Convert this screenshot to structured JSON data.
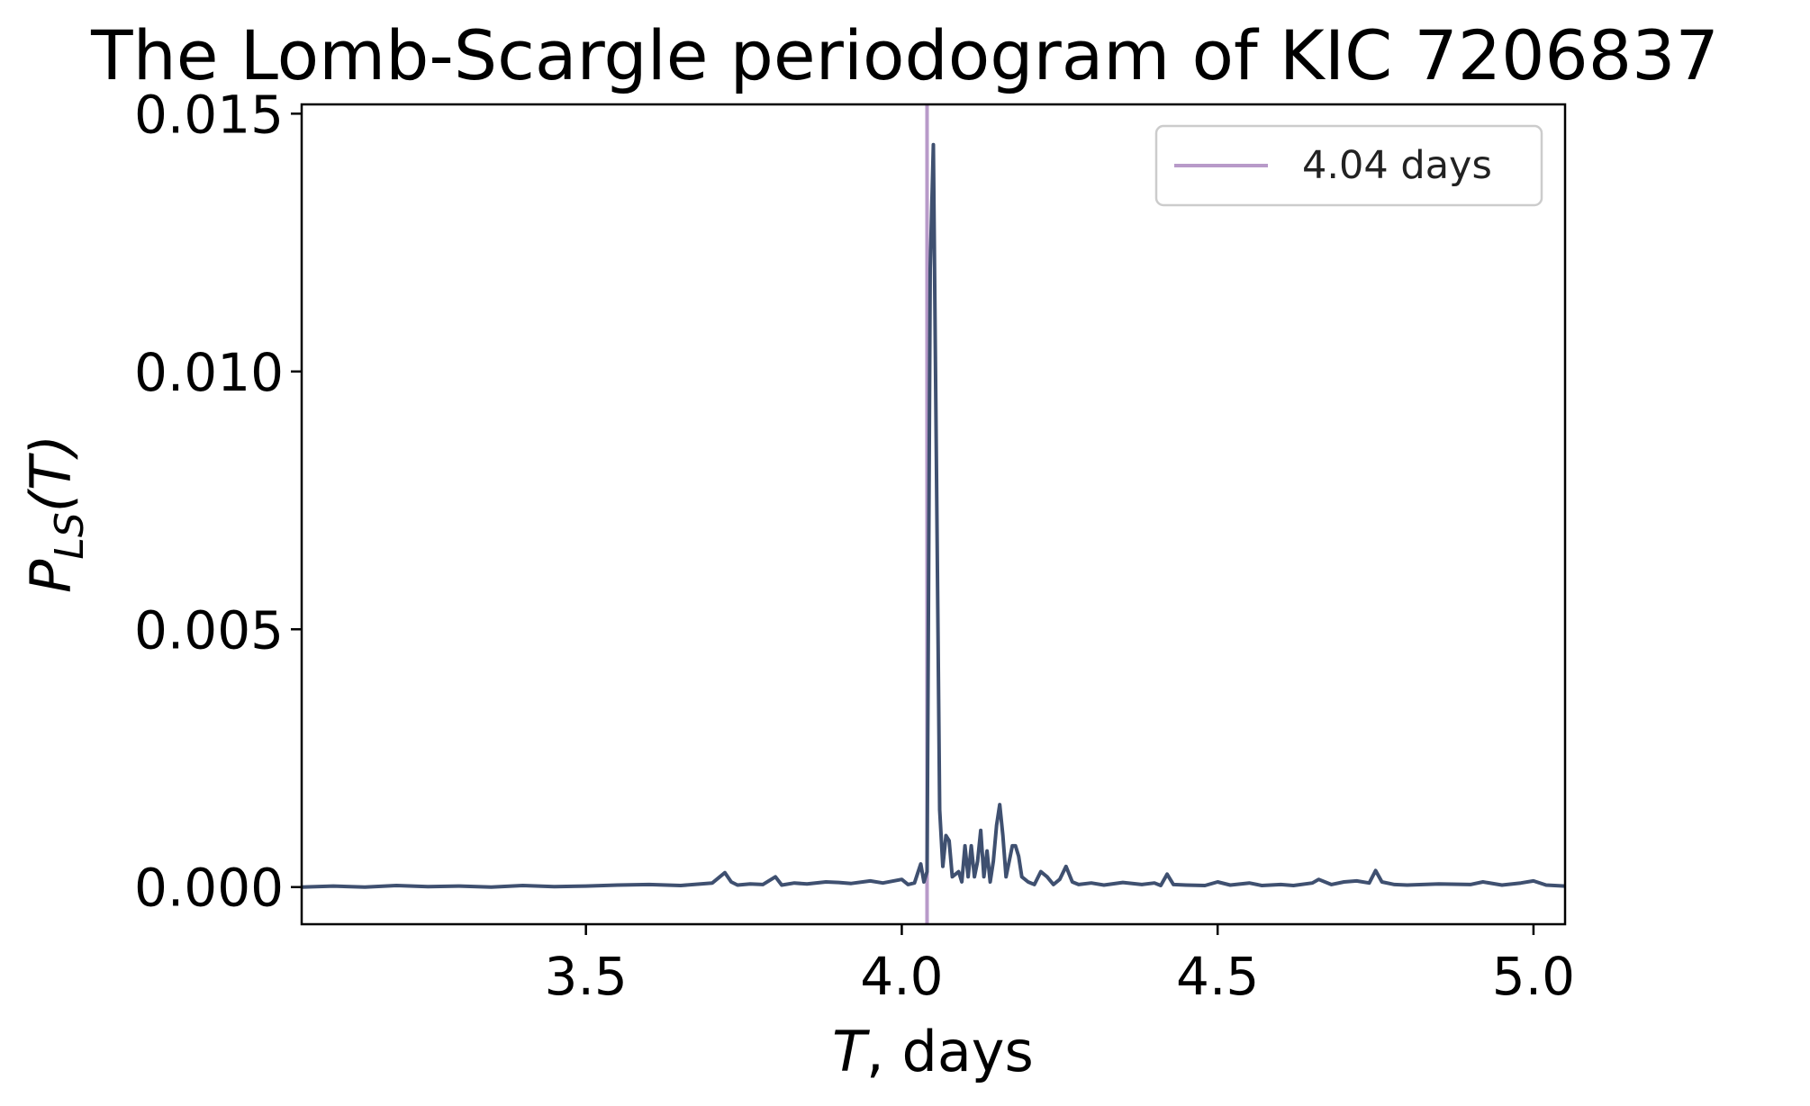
{
  "chart_data": {
    "type": "line",
    "title": "The Lomb-Scargle periodogram of KIC 7206837",
    "xlabel": {
      "italic": "T",
      "rest": ", days"
    },
    "ylabel": {
      "main": "P",
      "sub": "LS",
      "arg": "(T)"
    },
    "xlim": [
      3.05,
      5.05
    ],
    "ylim": [
      -0.00072,
      0.01518
    ],
    "xticks": [
      3.5,
      4.0,
      4.5,
      5.0
    ],
    "xtick_labels": [
      "3.5",
      "4.0",
      "4.5",
      "5.0"
    ],
    "yticks": [
      0.0,
      0.005,
      0.01,
      0.015
    ],
    "ytick_labels": [
      "0.000",
      "0.005",
      "0.010",
      "0.015"
    ],
    "grid": false,
    "legend": {
      "position": "top-right",
      "entries": [
        "4.04 days"
      ]
    },
    "vline": {
      "x": 4.04,
      "label": "4.04 days",
      "color": "#b89ac9"
    },
    "series": [
      {
        "color": "#3f5070",
        "x": [
          3.05,
          3.1,
          3.15,
          3.2,
          3.25,
          3.3,
          3.35,
          3.4,
          3.45,
          3.5,
          3.55,
          3.6,
          3.65,
          3.7,
          3.72,
          3.73,
          3.74,
          3.76,
          3.78,
          3.8,
          3.81,
          3.83,
          3.85,
          3.88,
          3.9,
          3.92,
          3.95,
          3.97,
          4.0,
          4.01,
          4.02,
          4.03,
          4.035,
          4.04,
          4.045,
          4.05,
          4.055,
          4.06,
          4.065,
          4.07,
          4.075,
          4.08,
          4.09,
          4.095,
          4.1,
          4.105,
          4.11,
          4.115,
          4.12,
          4.125,
          4.13,
          4.135,
          4.14,
          4.145,
          4.15,
          4.155,
          4.16,
          4.165,
          4.17,
          4.175,
          4.18,
          4.185,
          4.19,
          4.2,
          4.21,
          4.22,
          4.23,
          4.24,
          4.25,
          4.26,
          4.27,
          4.28,
          4.3,
          4.32,
          4.35,
          4.38,
          4.4,
          4.41,
          4.42,
          4.43,
          4.45,
          4.48,
          4.5,
          4.52,
          4.55,
          4.57,
          4.6,
          4.62,
          4.65,
          4.66,
          4.68,
          4.7,
          4.72,
          4.74,
          4.75,
          4.76,
          4.78,
          4.8,
          4.85,
          4.9,
          4.92,
          4.95,
          4.98,
          5.0,
          5.02,
          5.05
        ],
        "y": [
          0.0,
          2e-05,
          0.0,
          3e-05,
          1e-05,
          2e-05,
          0.0,
          3e-05,
          1e-05,
          2e-05,
          4e-05,
          5e-05,
          3e-05,
          8e-05,
          0.00028,
          0.0001,
          4e-05,
          6e-05,
          5e-05,
          0.0002,
          4e-05,
          8e-05,
          6e-05,
          0.0001,
          9e-05,
          7e-05,
          0.00012,
          8e-05,
          0.00015,
          5e-05,
          8e-05,
          0.00045,
          0.0001,
          0.0003,
          0.012,
          0.0144,
          0.008,
          0.0015,
          0.0004,
          0.001,
          0.0009,
          0.0002,
          0.0003,
          0.0001,
          0.0008,
          0.0002,
          0.0008,
          0.0002,
          0.0005,
          0.0011,
          0.0002,
          0.0007,
          0.0001,
          0.0005,
          0.0012,
          0.0016,
          0.001,
          0.0002,
          0.0005,
          0.0008,
          0.0008,
          0.0006,
          0.0002,
          0.0001,
          5e-05,
          0.0003,
          0.0002,
          5e-05,
          0.00015,
          0.0004,
          0.0001,
          5e-05,
          8e-05,
          4e-05,
          9e-05,
          5e-05,
          8e-05,
          3e-05,
          0.00025,
          5e-05,
          4e-05,
          3e-05,
          0.0001,
          4e-05,
          8e-05,
          3e-05,
          5e-05,
          3e-05,
          8e-05,
          0.00015,
          5e-05,
          0.0001,
          0.00012,
          8e-05,
          0.00032,
          0.0001,
          5e-05,
          4e-05,
          6e-05,
          5e-05,
          0.0001,
          4e-05,
          8e-05,
          0.00012,
          4e-05,
          2e-05
        ]
      }
    ]
  }
}
